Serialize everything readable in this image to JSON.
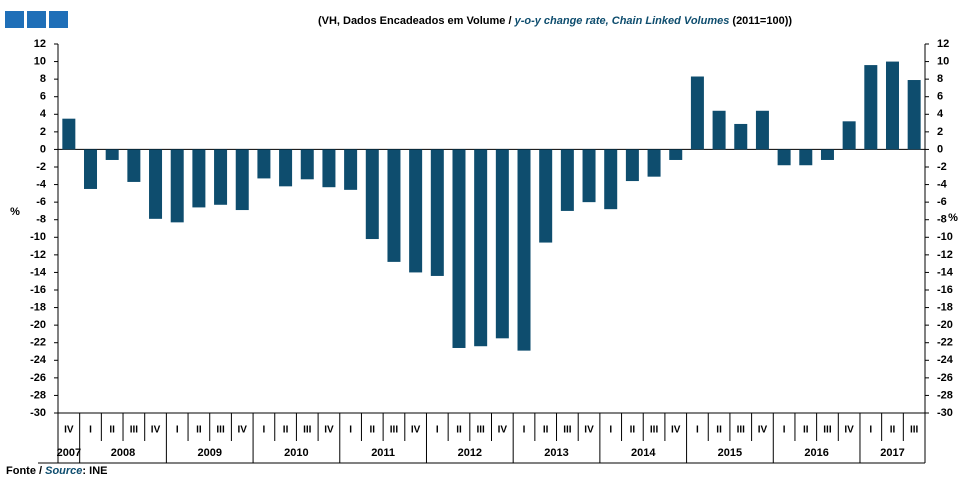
{
  "chart_data": {
    "type": "bar",
    "title": "(VH, Dados Encadeados em Volume /",
    "title_en": "y-o-y change rate, Chain Linked Volumes",
    "title_base": "(2011=100))",
    "ylabel": "%",
    "y2label": "%",
    "categories": [
      "IV",
      "I",
      "II",
      "III",
      "IV",
      "I",
      "II",
      "III",
      "IV",
      "I",
      "II",
      "III",
      "IV",
      "I",
      "II",
      "III",
      "IV",
      "I",
      "II",
      "III",
      "IV",
      "I",
      "II",
      "III",
      "IV",
      "I",
      "II",
      "III",
      "IV",
      "I",
      "II",
      "III",
      "IV",
      "I",
      "II",
      "III",
      "IV",
      "I",
      "II",
      "III"
    ],
    "x_groups": [
      "2007",
      "2008",
      "2009",
      "2010",
      "2011",
      "2012",
      "2013",
      "2014",
      "2015",
      "2016",
      "2017"
    ],
    "values": [
      3.5,
      -4.5,
      -1.2,
      -3.7,
      -7.9,
      -8.3,
      -6.6,
      -6.3,
      -6.9,
      -3.3,
      -4.2,
      -3.4,
      -4.3,
      -4.6,
      -10.2,
      -12.8,
      -14.0,
      -14.4,
      -22.6,
      -22.4,
      -21.5,
      -22.9,
      -10.6,
      -7.0,
      -6.0,
      -6.8,
      -3.6,
      -3.1,
      -1.2,
      8.3,
      4.4,
      2.9,
      4.4,
      -1.8,
      -1.8,
      -1.2,
      3.2,
      9.6,
      10.0,
      7.9
    ],
    "color": "#0e4d6e",
    "ylim": [
      -30,
      12
    ],
    "yticks": [
      -30,
      -28,
      -26,
      -24,
      -22,
      -20,
      -18,
      -16,
      -14,
      -12,
      -10,
      -8,
      -6,
      -4,
      -2,
      0,
      2,
      4,
      6,
      8,
      10,
      12
    ],
    "y2lim": [
      -30,
      12
    ],
    "y2ticks": [
      -30,
      -28,
      -26,
      -24,
      -22,
      -20,
      -18,
      -16,
      -14,
      -12,
      -10,
      -8,
      -6,
      -4,
      -2,
      0,
      2,
      4,
      6,
      8,
      10,
      12
    ],
    "source_label": "Fonte /",
    "source_label_en": "Source",
    "source": ": INE"
  }
}
